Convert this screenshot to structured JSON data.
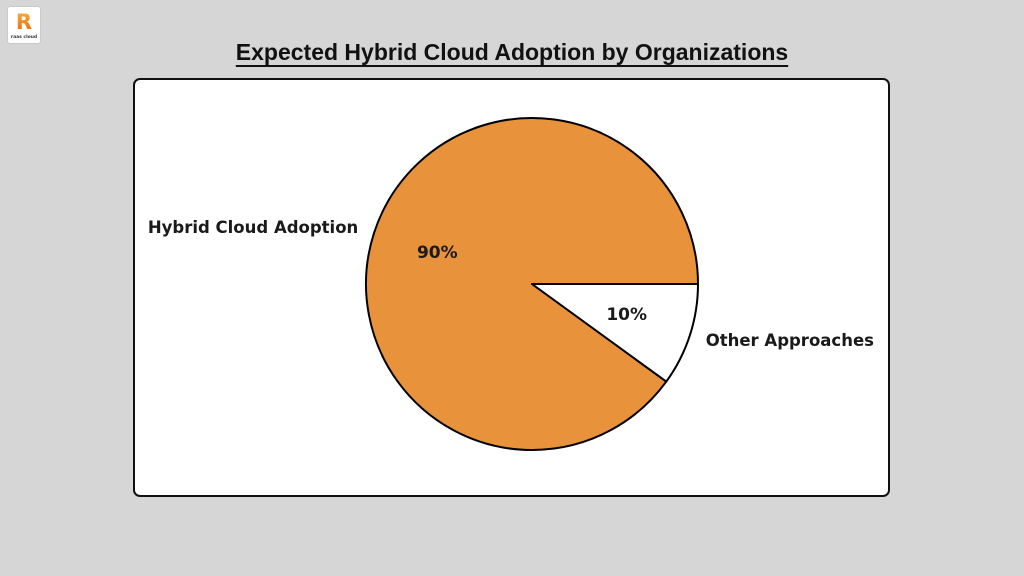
{
  "page": {
    "background": "#D6D6D6"
  },
  "logo": {
    "letter": "R",
    "text": "raas cloud",
    "gradient_top": "#F9B233",
    "gradient_bottom": "#E8641C"
  },
  "header": {
    "title": "Expected Hybrid Cloud Adoption by Organizations"
  },
  "panel": {
    "background": "#FFFFFF",
    "border_color": "#111111"
  },
  "chart_data": {
    "type": "pie",
    "title": "Expected Hybrid Cloud Adoption by Organizations",
    "slices": [
      {
        "label": "Hybrid Cloud Adoption",
        "value": 90,
        "pct_label": "90%",
        "color": "#E8923C"
      },
      {
        "label": "Other Approaches",
        "value": 10,
        "pct_label": "10%",
        "color": "#FFFFFF"
      }
    ],
    "start_angle": 0,
    "direction": "counterclockwise",
    "edge_color": "#000000",
    "label_color": "#1A1A1A",
    "legend": "none",
    "grid": false
  }
}
